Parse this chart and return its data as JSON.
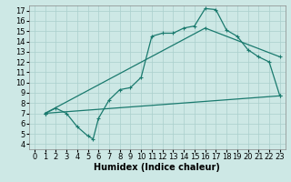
{
  "xlabel": "Humidex (Indice chaleur)",
  "bg_color": "#cde8e5",
  "grid_color": "#aacfcc",
  "line_color": "#1a7a6e",
  "marker": "+",
  "xlim": [
    -0.5,
    23.5
  ],
  "ylim": [
    3.5,
    17.5
  ],
  "xticks": [
    0,
    1,
    2,
    3,
    4,
    5,
    6,
    7,
    8,
    9,
    10,
    11,
    12,
    13,
    14,
    15,
    16,
    17,
    18,
    19,
    20,
    21,
    22,
    23
  ],
  "yticks": [
    4,
    5,
    6,
    7,
    8,
    9,
    10,
    11,
    12,
    13,
    14,
    15,
    16,
    17
  ],
  "curve1_x": [
    1,
    2,
    3,
    4,
    5,
    5.5,
    6,
    7,
    8,
    9,
    10,
    11,
    12,
    13,
    14,
    15,
    16,
    17,
    18,
    19,
    20,
    21,
    22,
    23
  ],
  "curve1_y": [
    7.0,
    7.5,
    7.0,
    5.7,
    4.8,
    4.5,
    6.5,
    8.3,
    9.3,
    9.5,
    10.5,
    14.5,
    14.8,
    14.8,
    15.3,
    15.5,
    17.2,
    17.1,
    15.1,
    14.5,
    13.2,
    12.5,
    12.0,
    8.7
  ],
  "curve2_x": [
    1,
    16,
    23
  ],
  "curve2_y": [
    7.0,
    15.3,
    12.5
  ],
  "curve3_x": [
    1,
    23
  ],
  "curve3_y": [
    7.0,
    8.7
  ],
  "fontsize_label": 7,
  "fontsize_tick": 6,
  "linewidth": 0.9,
  "markersize": 3.0
}
